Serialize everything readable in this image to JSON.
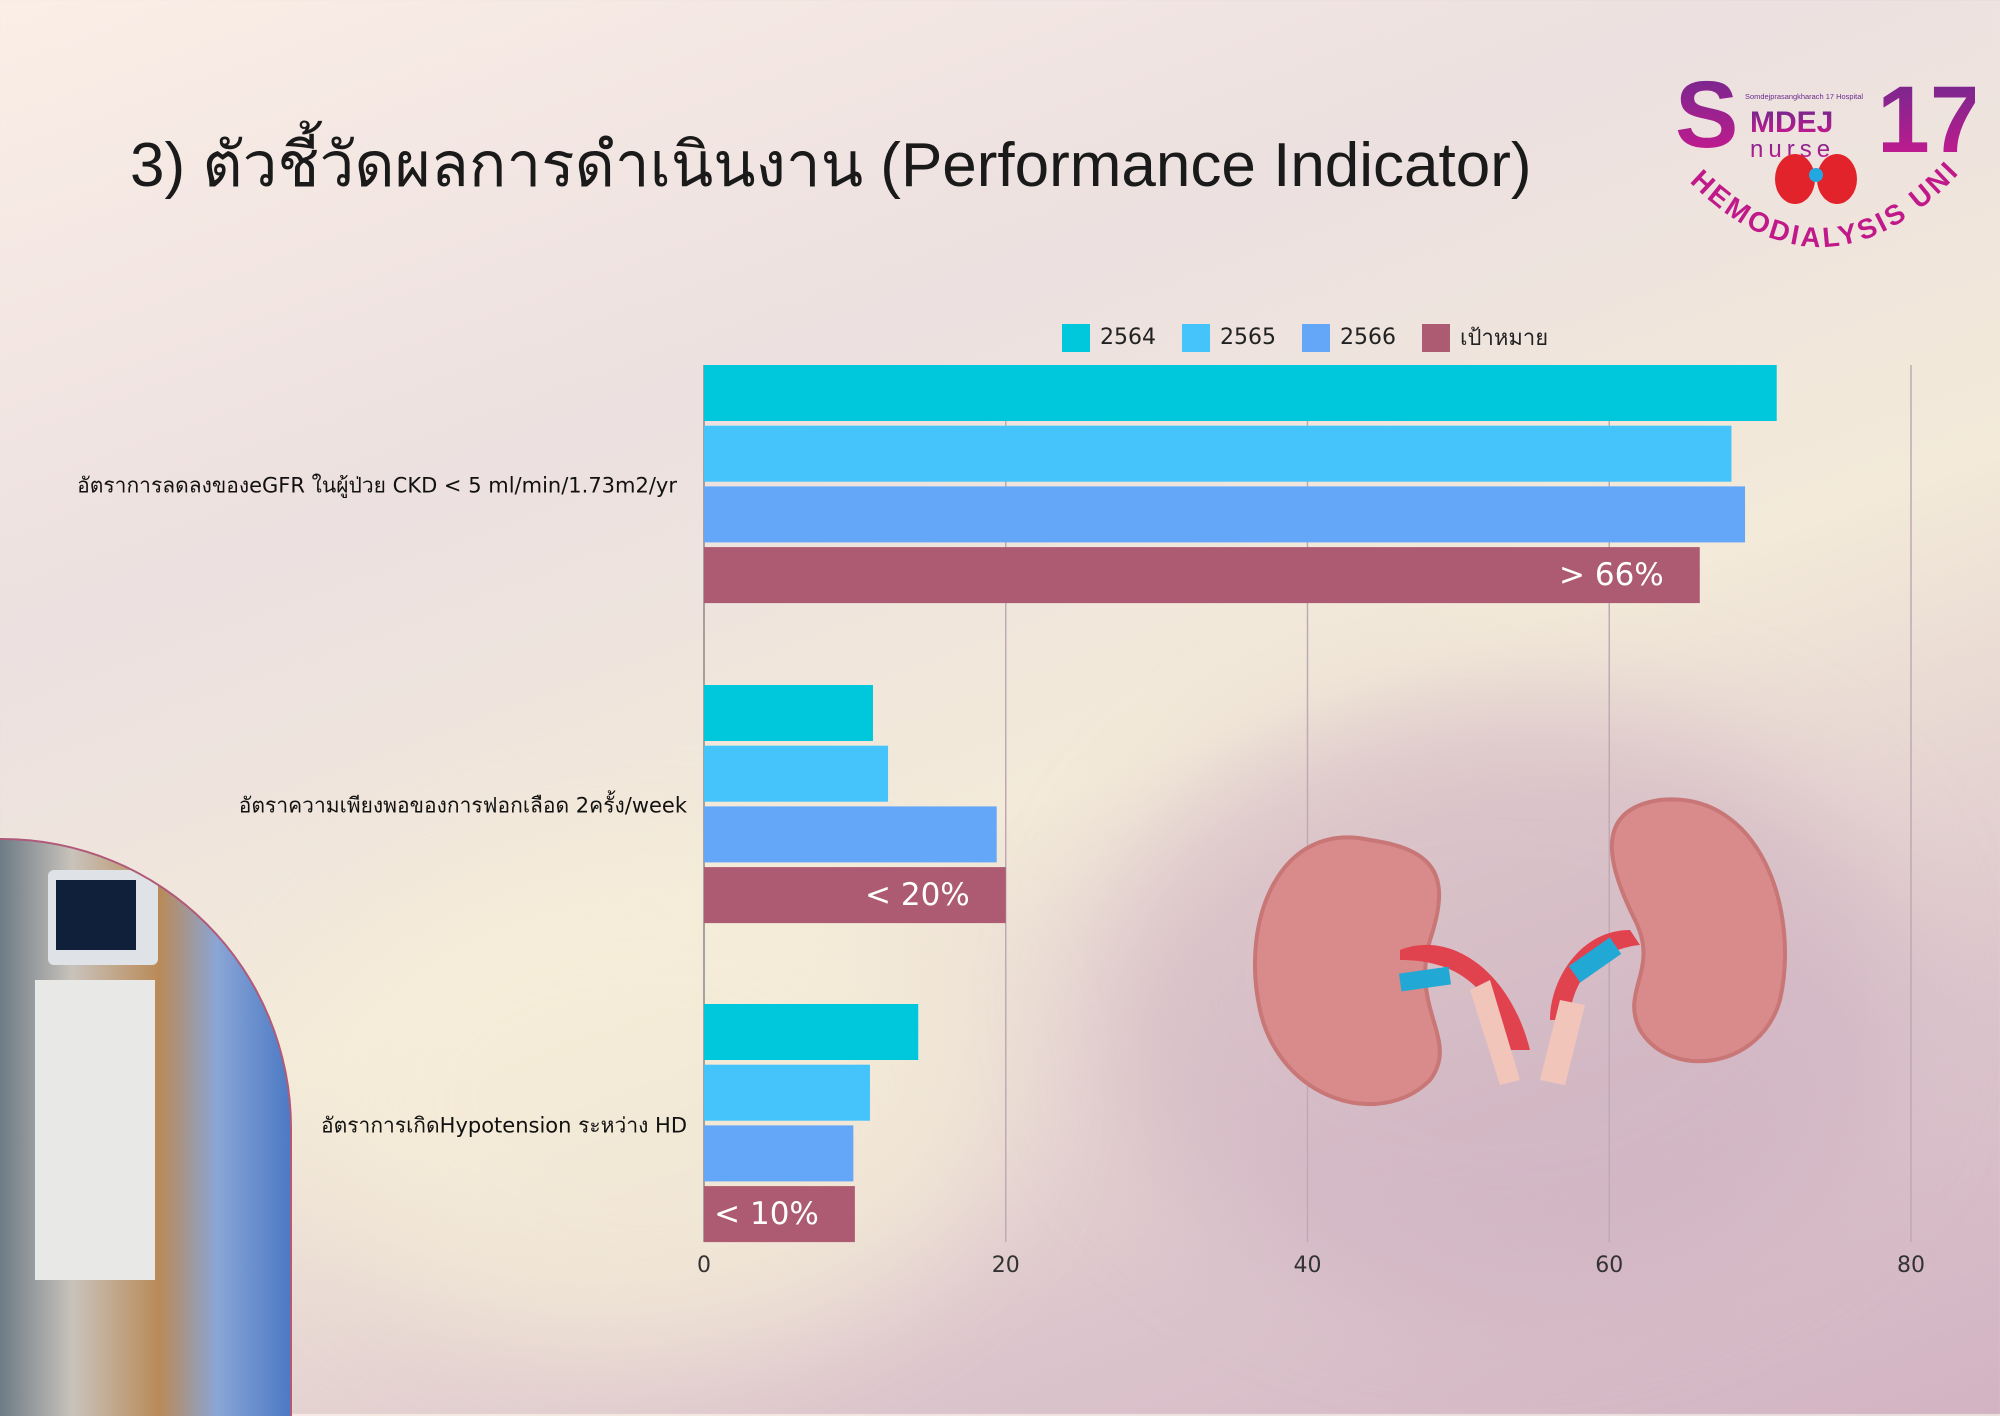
{
  "title": "3) ตัวชี้วัดผลการดำเนินงาน (Performance Indicator)",
  "logo": {
    "big_letter": "S",
    "word": "MDEJ",
    "sub": "nurse",
    "number": "17",
    "hospital": "Somdejprasangkharach 17 Hospital",
    "arc_text": "HEMODIALYSIS UNIT"
  },
  "chart_data": {
    "type": "bar",
    "orientation": "horizontal",
    "categories": [
      "อัตราการลดลงของeGFR ในผู้ป่วย CKD < 5 ml/min/1.73m2/yr",
      "อัตราความเพียงพอของการฟอกเลือด 2ครั้ง/week",
      "อัตราการเกิดHypotension ระหว่าง HD"
    ],
    "series": [
      {
        "name": "2564",
        "color": "#00c8dc",
        "values": [
          71.1,
          11.2,
          14.2
        ]
      },
      {
        "name": "2565",
        "color": "#45c3fb",
        "values": [
          68.1,
          12.2,
          11.0
        ]
      },
      {
        "name": "2566",
        "color": "#64a7f8",
        "values": [
          69.0,
          19.4,
          9.9
        ]
      },
      {
        "name": "เป้าหมาย",
        "color": "#ac5b72",
        "values": [
          66,
          20,
          10
        ]
      }
    ],
    "target_labels": [
      "> 66%",
      "< 20%",
      "< 10%"
    ],
    "xlim": [
      0,
      80
    ],
    "xticks": [
      "0",
      "20",
      "40",
      "60",
      "80"
    ],
    "grid": true,
    "legend": "top"
  }
}
